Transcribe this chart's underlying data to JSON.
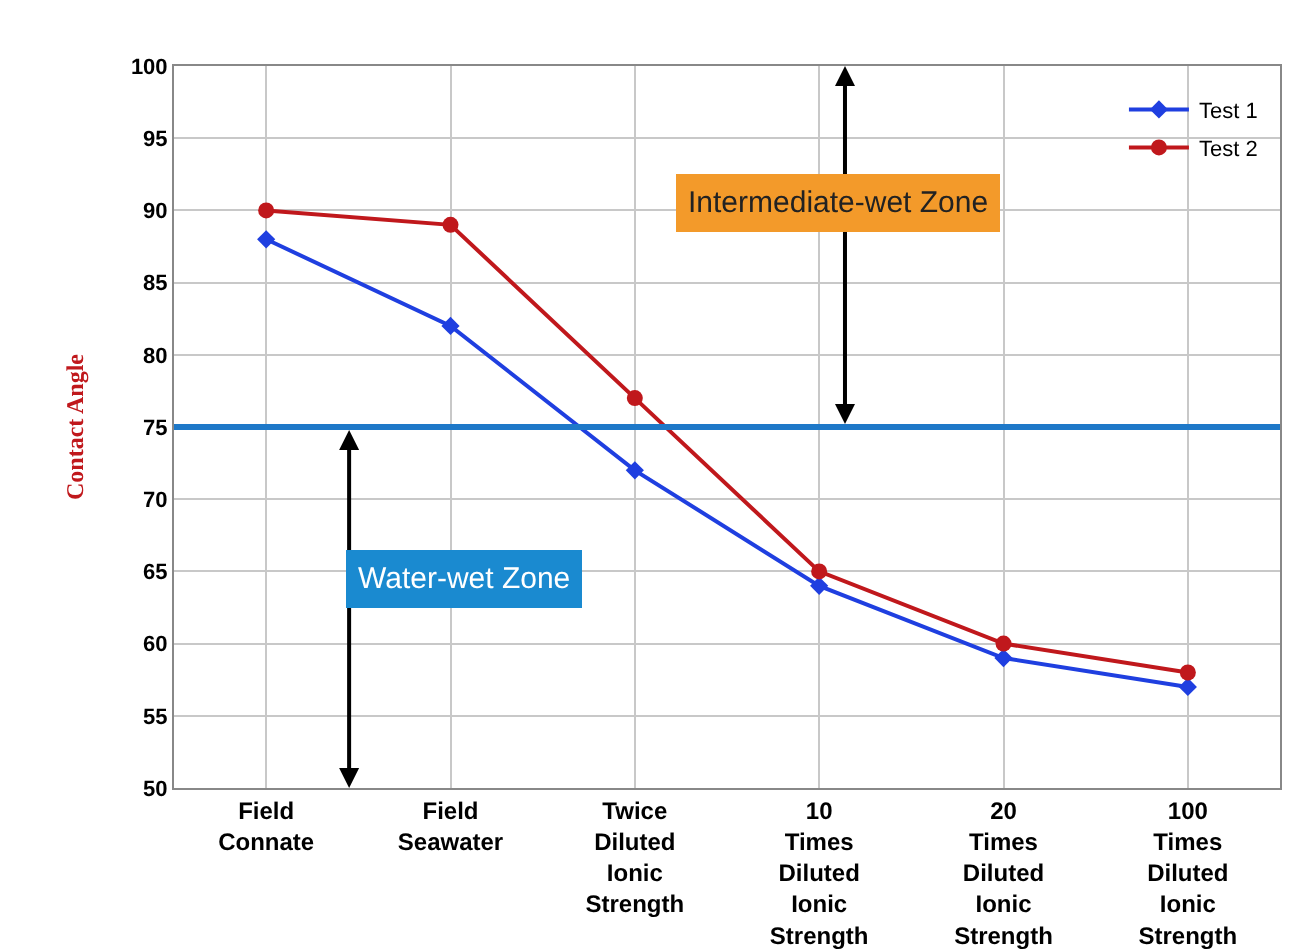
{
  "chart_data": {
    "type": "line",
    "ylabel": "Contact Angle",
    "categories": [
      "Field Connate",
      "Field Seawater",
      "Twice Diluted Ionic Strength",
      "10 Times Diluted Ionic Strength",
      "20 Times Diluted Ionic Strength",
      "100 Times Diluted Ionic Strength"
    ],
    "series": [
      {
        "name": "Test 1",
        "color": "#1f3fe0",
        "marker": "diamond",
        "values": [
          88,
          82,
          72,
          64,
          59,
          57
        ]
      },
      {
        "name": "Test 2",
        "color": "#c0181c",
        "marker": "circle",
        "values": [
          90,
          89,
          77,
          65,
          60,
          58
        ]
      }
    ],
    "ylim": [
      50,
      100
    ],
    "yticks": [
      50,
      55,
      60,
      65,
      70,
      75,
      80,
      85,
      90,
      95,
      100
    ],
    "grid": true,
    "legend": "top right",
    "line_style": "solid",
    "ref_lines": [
      {
        "axis": "y",
        "value": 75,
        "color": "#1e78c8"
      }
    ],
    "annotations": [
      "Intermediate-wet Zone",
      "Water-wet Zone"
    ]
  }
}
